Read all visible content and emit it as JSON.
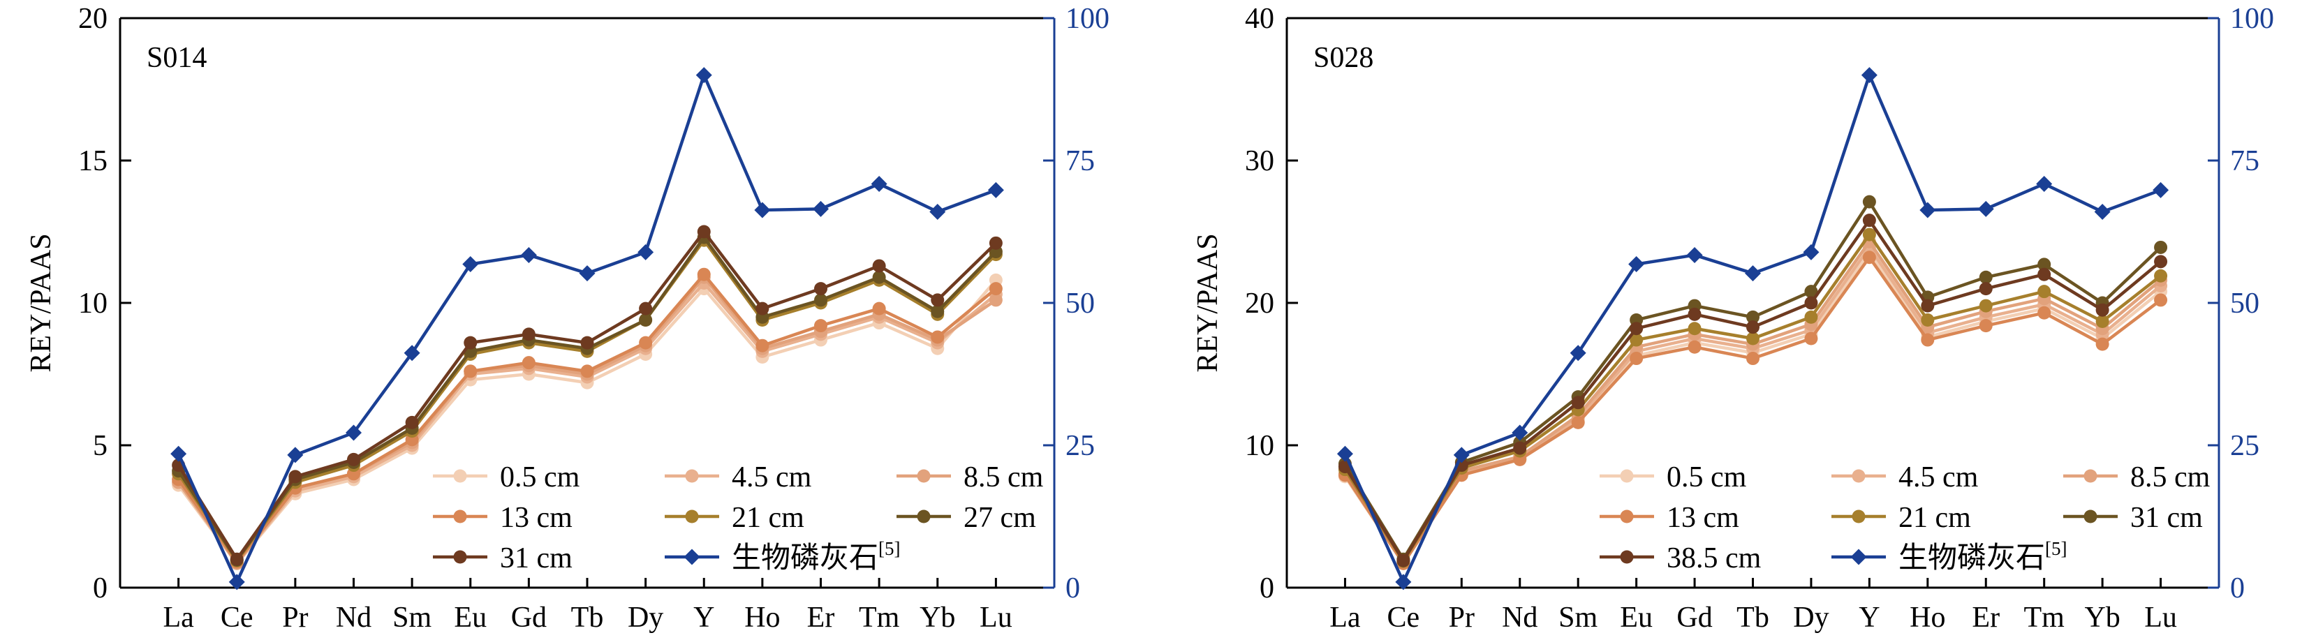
{
  "colors": {
    "axis_left": "#000000",
    "axis_right": "#1a3f94",
    "apatite": "#1a3f94"
  },
  "chart_data": [
    {
      "type": "line",
      "panel_label": "S014",
      "ylabel": "REY/PAAS",
      "categories": [
        "La",
        "Ce",
        "Pr",
        "Nd",
        "Sm",
        "Eu",
        "Gd",
        "Tb",
        "Dy",
        "Y",
        "Ho",
        "Er",
        "Tm",
        "Yb",
        "Lu"
      ],
      "ylim": [
        0,
        20
      ],
      "yticks": [
        "0",
        "5",
        "10",
        "15",
        "20"
      ],
      "y2lim": [
        0,
        100
      ],
      "y2ticks": [
        "0",
        "25",
        "50",
        "75",
        "100"
      ],
      "legend_position": "bottom-right",
      "series": [
        {
          "name": "0.5 cm",
          "color": "#f3cfb4",
          "marker": "circle",
          "axis": "left",
          "values": [
            3.6,
            0.85,
            3.3,
            3.8,
            4.9,
            7.3,
            7.5,
            7.2,
            8.2,
            10.5,
            8.1,
            8.7,
            9.3,
            8.4,
            10.8
          ]
        },
        {
          "name": "4.5 cm",
          "color": "#e9b08e",
          "marker": "circle",
          "axis": "left",
          "values": [
            3.7,
            0.85,
            3.4,
            3.9,
            5.0,
            7.5,
            7.7,
            7.4,
            8.4,
            10.7,
            8.3,
            8.9,
            9.5,
            8.6,
            10.3
          ]
        },
        {
          "name": "8.5 cm",
          "color": "#e2a27c",
          "marker": "circle",
          "axis": "left",
          "values": [
            3.7,
            0.87,
            3.5,
            4.0,
            5.1,
            7.6,
            7.8,
            7.5,
            8.5,
            10.9,
            8.4,
            9.0,
            9.6,
            8.7,
            10.1
          ]
        },
        {
          "name": "13 cm",
          "color": "#d98654",
          "marker": "circle",
          "axis": "left",
          "values": [
            3.8,
            0.9,
            3.5,
            4.0,
            5.2,
            7.6,
            7.9,
            7.6,
            8.6,
            11.0,
            8.5,
            9.2,
            9.8,
            8.8,
            10.5
          ]
        },
        {
          "name": "21 cm",
          "color": "#a67f2c",
          "marker": "circle",
          "axis": "left",
          "values": [
            4.0,
            0.95,
            3.7,
            4.3,
            5.5,
            8.2,
            8.6,
            8.3,
            9.4,
            12.2,
            9.4,
            10.0,
            10.8,
            9.6,
            11.7
          ]
        },
        {
          "name": "27 cm",
          "color": "#6b5422",
          "marker": "circle",
          "axis": "left",
          "values": [
            4.1,
            0.97,
            3.8,
            4.4,
            5.6,
            8.3,
            8.7,
            8.4,
            9.4,
            12.3,
            9.5,
            10.1,
            10.9,
            9.7,
            11.8
          ]
        },
        {
          "name": "31 cm",
          "color": "#6e3a20",
          "marker": "circle",
          "axis": "left",
          "values": [
            4.3,
            1.0,
            3.9,
            4.5,
            5.8,
            8.6,
            8.9,
            8.6,
            9.8,
            12.5,
            9.8,
            10.5,
            11.3,
            10.1,
            12.1
          ]
        },
        {
          "name": "生物磷灰石",
          "superscript": "[5]",
          "color": "#1a3f94",
          "marker": "diamond",
          "axis": "right",
          "values": [
            23.5,
            1.0,
            23.3,
            27.2,
            41.2,
            56.8,
            58.4,
            55.2,
            58.9,
            90.0,
            66.3,
            66.5,
            70.9,
            66.0,
            69.8
          ]
        }
      ]
    },
    {
      "type": "line",
      "panel_label": "S028",
      "ylabel": "REY/PAAS",
      "categories": [
        "La",
        "Ce",
        "Pr",
        "Nd",
        "Sm",
        "Eu",
        "Gd",
        "Tb",
        "Dy",
        "Y",
        "Ho",
        "Er",
        "Tm",
        "Yb",
        "Lu"
      ],
      "ylim": [
        0,
        40
      ],
      "yticks": [
        "0",
        "10",
        "20",
        "30",
        "40"
      ],
      "y2lim": [
        0,
        100
      ],
      "y2ticks": [
        "0",
        "25",
        "50",
        "75",
        "100"
      ],
      "legend_position": "bottom-right",
      "series": [
        {
          "name": "0.5 cm",
          "color": "#f3cfb4",
          "marker": "circle",
          "axis": "left",
          "values": [
            7.8,
            1.7,
            8.0,
            9.0,
            11.7,
            16.3,
            17.2,
            16.5,
            17.8,
            23.5,
            17.6,
            18.7,
            19.6,
            17.5,
            20.8
          ]
        },
        {
          "name": "4.5 cm",
          "color": "#e9b08e",
          "marker": "circle",
          "axis": "left",
          "values": [
            7.9,
            1.75,
            8.1,
            9.1,
            11.9,
            16.6,
            17.5,
            16.8,
            18.1,
            23.9,
            17.9,
            19.0,
            19.9,
            17.8,
            21.2
          ]
        },
        {
          "name": "8.5 cm",
          "color": "#e2a27c",
          "marker": "circle",
          "axis": "left",
          "values": [
            8.0,
            1.8,
            8.2,
            9.2,
            12.1,
            16.9,
            17.8,
            17.1,
            18.5,
            24.3,
            18.3,
            19.4,
            20.3,
            18.2,
            21.6
          ]
        },
        {
          "name": "13 cm",
          "color": "#d98654",
          "marker": "circle",
          "axis": "left",
          "values": [
            7.9,
            1.7,
            7.9,
            9.0,
            11.6,
            16.1,
            16.9,
            16.1,
            17.5,
            23.2,
            17.4,
            18.4,
            19.3,
            17.1,
            20.2
          ]
        },
        {
          "name": "21 cm",
          "color": "#a67f2c",
          "marker": "circle",
          "axis": "left",
          "values": [
            8.3,
            1.85,
            8.4,
            9.6,
            12.5,
            17.4,
            18.2,
            17.5,
            19.0,
            24.8,
            18.8,
            19.8,
            20.8,
            18.7,
            21.9
          ]
        },
        {
          "name": "31 cm",
          "color": "#6b5422",
          "marker": "circle",
          "axis": "left",
          "values": [
            8.7,
            2.0,
            8.8,
            10.2,
            13.4,
            18.8,
            19.8,
            19.0,
            20.8,
            27.1,
            20.4,
            21.8,
            22.7,
            20.0,
            23.9
          ]
        },
        {
          "name": "38.5 cm",
          "color": "#6e3a20",
          "marker": "circle",
          "axis": "left",
          "values": [
            8.5,
            1.9,
            8.6,
            9.8,
            13.0,
            18.2,
            19.2,
            18.3,
            20.0,
            25.8,
            19.8,
            21.0,
            22.0,
            19.5,
            22.9
          ]
        },
        {
          "name": "生物磷灰石",
          "superscript": "[5]",
          "color": "#1a3f94",
          "marker": "diamond",
          "axis": "right",
          "values": [
            23.5,
            1.0,
            23.3,
            27.2,
            41.2,
            56.8,
            58.4,
            55.2,
            58.9,
            90.0,
            66.3,
            66.5,
            70.9,
            66.0,
            69.8
          ]
        }
      ]
    }
  ]
}
